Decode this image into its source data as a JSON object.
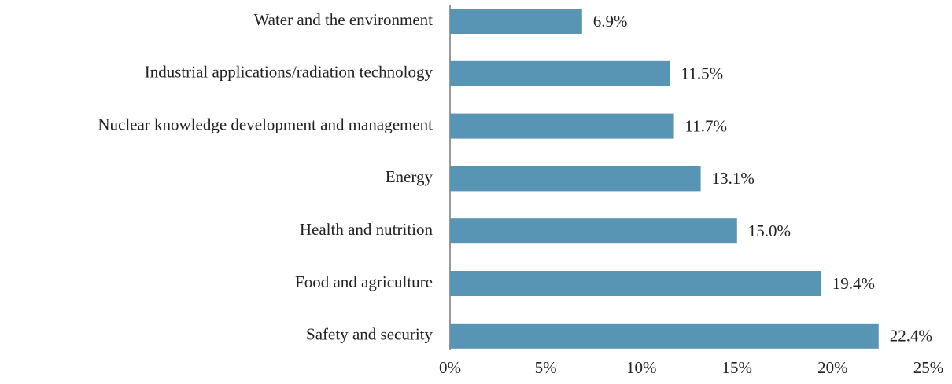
{
  "chart_data": {
    "type": "barh",
    "categories": [
      "Water and the environment",
      "Industrial applications/radiation technology",
      "Nuclear knowledge development and management",
      "Energy",
      "Health and nutrition",
      "Food and agriculture",
      "Safety and security"
    ],
    "values": [
      6.9,
      11.5,
      11.7,
      13.1,
      15.0,
      19.4,
      22.4
    ],
    "value_labels": [
      "6.9%",
      "11.5%",
      "11.7%",
      "13.1%",
      "15.0%",
      "19.4%",
      "22.4%"
    ],
    "color": "#5895b4",
    "xlim": [
      0,
      25
    ],
    "xticks": [
      {
        "value": 0,
        "label": "0%"
      },
      {
        "value": 5,
        "label": "5%"
      },
      {
        "value": 10,
        "label": "10%"
      },
      {
        "value": 15,
        "label": "15%"
      },
      {
        "value": 20,
        "label": "20%"
      },
      {
        "value": 25,
        "label": "25%"
      }
    ]
  }
}
